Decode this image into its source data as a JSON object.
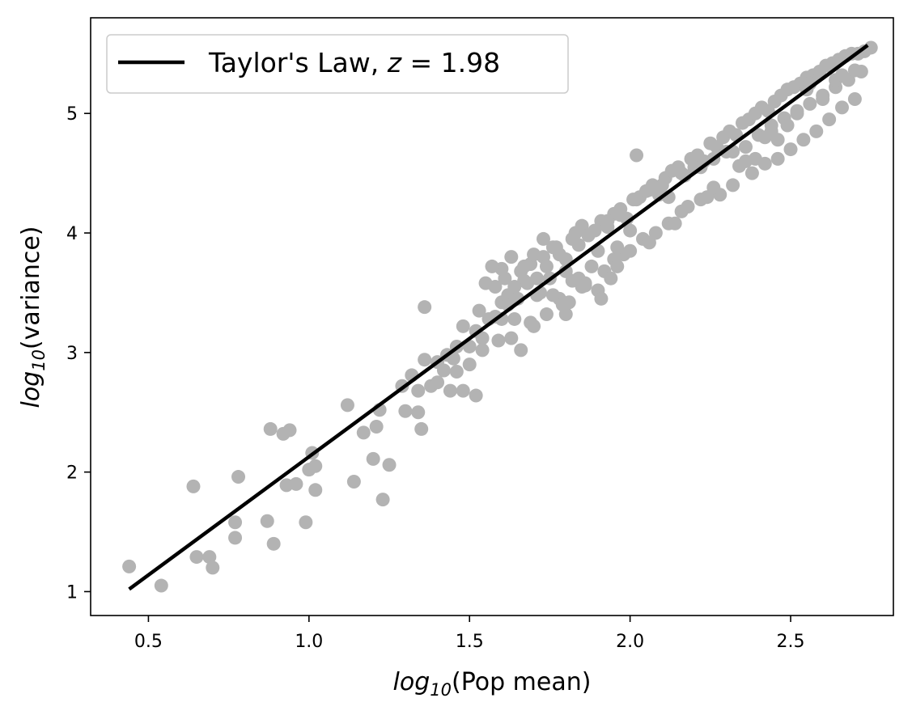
{
  "chart_data": {
    "type": "scatter",
    "title": "",
    "xlabel": {
      "prefix": "log",
      "sub": "10",
      "suffix": "(Pop mean)"
    },
    "ylabel": {
      "prefix": "log",
      "sub": "10",
      "suffix": "(variance)"
    },
    "xlim": [
      0.32,
      2.82
    ],
    "ylim": [
      0.8,
      5.8
    ],
    "xticks": [
      0.5,
      1.0,
      1.5,
      2.0,
      2.5
    ],
    "xtick_labels": [
      "0.5",
      "1.0",
      "1.5",
      "2.0",
      "2.5"
    ],
    "yticks": [
      1,
      2,
      3,
      4,
      5
    ],
    "ytick_labels": [
      "1",
      "2",
      "3",
      "4",
      "5"
    ],
    "grid": false,
    "legend": {
      "placement": "top-left",
      "entries": [
        {
          "name": "Taylor's Law, z = 1.98",
          "pre": "Taylor's Law, ",
          "var": "z",
          "post": " = 1.98"
        }
      ]
    },
    "colors": {
      "points": "#b3b3b3",
      "line": "#000000"
    },
    "fit_line": {
      "z": 1.98,
      "x": [
        0.44,
        2.74
      ],
      "y": [
        1.02,
        5.57
      ]
    },
    "points": {
      "x": [
        0.44,
        0.54,
        0.64,
        0.65,
        0.69,
        0.7,
        0.77,
        0.77,
        0.78,
        0.87,
        0.88,
        0.89,
        0.92,
        0.93,
        0.94,
        0.96,
        0.99,
        1.0,
        1.01,
        1.02,
        1.02,
        1.12,
        1.14,
        1.17,
        1.2,
        1.21,
        1.22,
        1.23,
        1.25,
        1.29,
        1.3,
        1.32,
        1.34,
        1.35,
        1.36,
        1.38,
        1.4,
        1.43,
        1.45,
        1.46,
        1.48,
        1.5,
        1.52,
        1.53,
        1.54,
        1.56,
        1.58,
        1.6,
        1.62,
        1.64,
        1.66,
        1.67,
        1.69,
        1.71,
        1.73,
        1.74,
        1.76,
        1.78,
        1.8,
        1.82,
        1.84,
        1.85,
        1.87,
        1.89,
        1.91,
        1.93,
        1.95,
        1.97,
        1.99,
        2.01,
        2.03,
        2.05,
        2.07,
        2.09,
        2.11,
        2.13,
        2.15,
        2.17,
        2.19,
        2.21,
        2.23,
        2.25,
        2.27,
        2.29,
        2.31,
        2.33,
        2.35,
        2.37,
        2.39,
        2.41,
        2.43,
        2.45,
        2.47,
        2.49,
        2.51,
        2.53,
        2.55,
        2.57,
        2.59,
        2.61,
        2.63,
        2.65,
        2.67,
        2.69,
        2.71,
        2.73,
        2.75,
        1.55,
        1.6,
        1.65,
        1.7,
        1.75,
        1.8,
        1.85,
        1.9,
        1.95,
        2.0,
        1.58,
        1.62,
        1.68,
        1.72,
        1.78,
        1.82,
        1.88,
        1.92,
        1.98,
        2.04,
        2.08,
        2.12,
        2.18,
        2.22,
        2.28,
        2.32,
        2.38,
        2.42,
        2.46,
        2.5,
        2.54,
        2.58,
        2.62,
        2.66,
        2.7,
        1.57,
        1.63,
        1.67,
        1.73,
        1.77,
        1.83,
        1.87,
        1.93,
        1.97,
        2.02,
        2.06,
        2.1,
        2.16,
        2.2,
        2.26,
        2.3,
        2.36,
        2.4,
        2.44,
        2.48,
        2.52,
        2.56,
        2.6,
        2.64,
        2.68,
        2.72,
        1.36,
        1.4,
        1.44,
        1.48,
        1.52,
        1.34,
        1.42,
        1.46,
        1.5,
        1.54,
        1.59,
        1.61,
        1.64,
        1.69,
        1.71,
        1.74,
        1.79,
        1.81,
        1.84,
        1.86,
        1.9,
        1.94,
        1.96,
        2.0,
        2.14,
        2.24,
        2.34,
        2.39,
        2.44,
        2.49,
        2.55,
        2.6,
        2.64,
        2.7,
        2.02,
        2.12,
        2.22,
        2.32,
        2.42,
        2.52,
        1.6,
        1.63,
        1.66,
        1.7,
        1.76,
        1.8,
        1.86,
        1.91,
        1.96,
        2.06,
        2.16,
        2.26,
        2.36,
        2.46,
        2.56,
        2.66
      ],
      "y": [
        1.21,
        1.05,
        1.88,
        1.29,
        1.29,
        1.2,
        1.45,
        1.58,
        1.96,
        1.59,
        2.36,
        1.4,
        2.32,
        1.89,
        2.35,
        1.9,
        1.58,
        2.02,
        2.16,
        2.05,
        1.85,
        2.56,
        1.92,
        2.33,
        2.11,
        2.38,
        2.52,
        1.77,
        2.06,
        2.72,
        2.51,
        2.81,
        2.5,
        2.36,
        2.94,
        2.72,
        2.92,
        2.98,
        2.95,
        2.84,
        3.22,
        3.05,
        3.18,
        3.35,
        3.12,
        3.28,
        3.55,
        3.42,
        3.48,
        3.55,
        3.68,
        3.6,
        3.74,
        3.62,
        3.8,
        3.72,
        3.88,
        3.82,
        3.78,
        3.95,
        3.9,
        4.06,
        3.98,
        4.02,
        4.1,
        4.05,
        4.16,
        4.2,
        4.12,
        4.28,
        4.3,
        4.35,
        4.4,
        4.32,
        4.46,
        4.52,
        4.55,
        4.48,
        4.62,
        4.65,
        4.6,
        4.75,
        4.72,
        4.8,
        4.85,
        4.82,
        4.92,
        4.95,
        5.0,
        5.05,
        5.02,
        5.1,
        5.15,
        5.2,
        5.22,
        5.25,
        5.3,
        5.32,
        5.35,
        5.4,
        5.42,
        5.45,
        5.48,
        5.5,
        5.5,
        5.52,
        5.55,
        3.58,
        3.7,
        3.45,
        3.82,
        3.62,
        3.68,
        3.55,
        3.85,
        3.78,
        4.02,
        3.3,
        3.4,
        3.58,
        3.5,
        3.45,
        3.6,
        3.72,
        3.68,
        3.82,
        3.95,
        4.0,
        4.08,
        4.22,
        4.28,
        4.32,
        4.4,
        4.5,
        4.58,
        4.62,
        4.7,
        4.78,
        4.85,
        4.95,
        5.05,
        5.12,
        3.72,
        3.8,
        3.72,
        3.95,
        3.88,
        4.0,
        3.98,
        4.1,
        4.15,
        4.28,
        4.36,
        4.4,
        4.5,
        4.55,
        4.62,
        4.68,
        4.72,
        4.82,
        4.9,
        4.96,
        5.02,
        5.08,
        5.15,
        5.22,
        5.28,
        5.35,
        3.38,
        2.75,
        2.68,
        2.68,
        2.64,
        2.68,
        2.85,
        3.05,
        2.9,
        3.02,
        3.1,
        3.62,
        3.28,
        3.25,
        3.48,
        3.32,
        3.4,
        3.42,
        3.62,
        3.58,
        3.52,
        3.62,
        3.88,
        3.85,
        4.08,
        4.3,
        4.56,
        4.62,
        4.85,
        4.9,
        5.2,
        5.12,
        5.28,
        5.36,
        4.65,
        4.3,
        4.55,
        4.68,
        4.8,
        5.0,
        3.28,
        3.12,
        3.02,
        3.22,
        3.48,
        3.32,
        3.56,
        3.45,
        3.72,
        3.92,
        4.18,
        4.38,
        4.6,
        4.78,
        5.25,
        5.32
      ]
    }
  }
}
